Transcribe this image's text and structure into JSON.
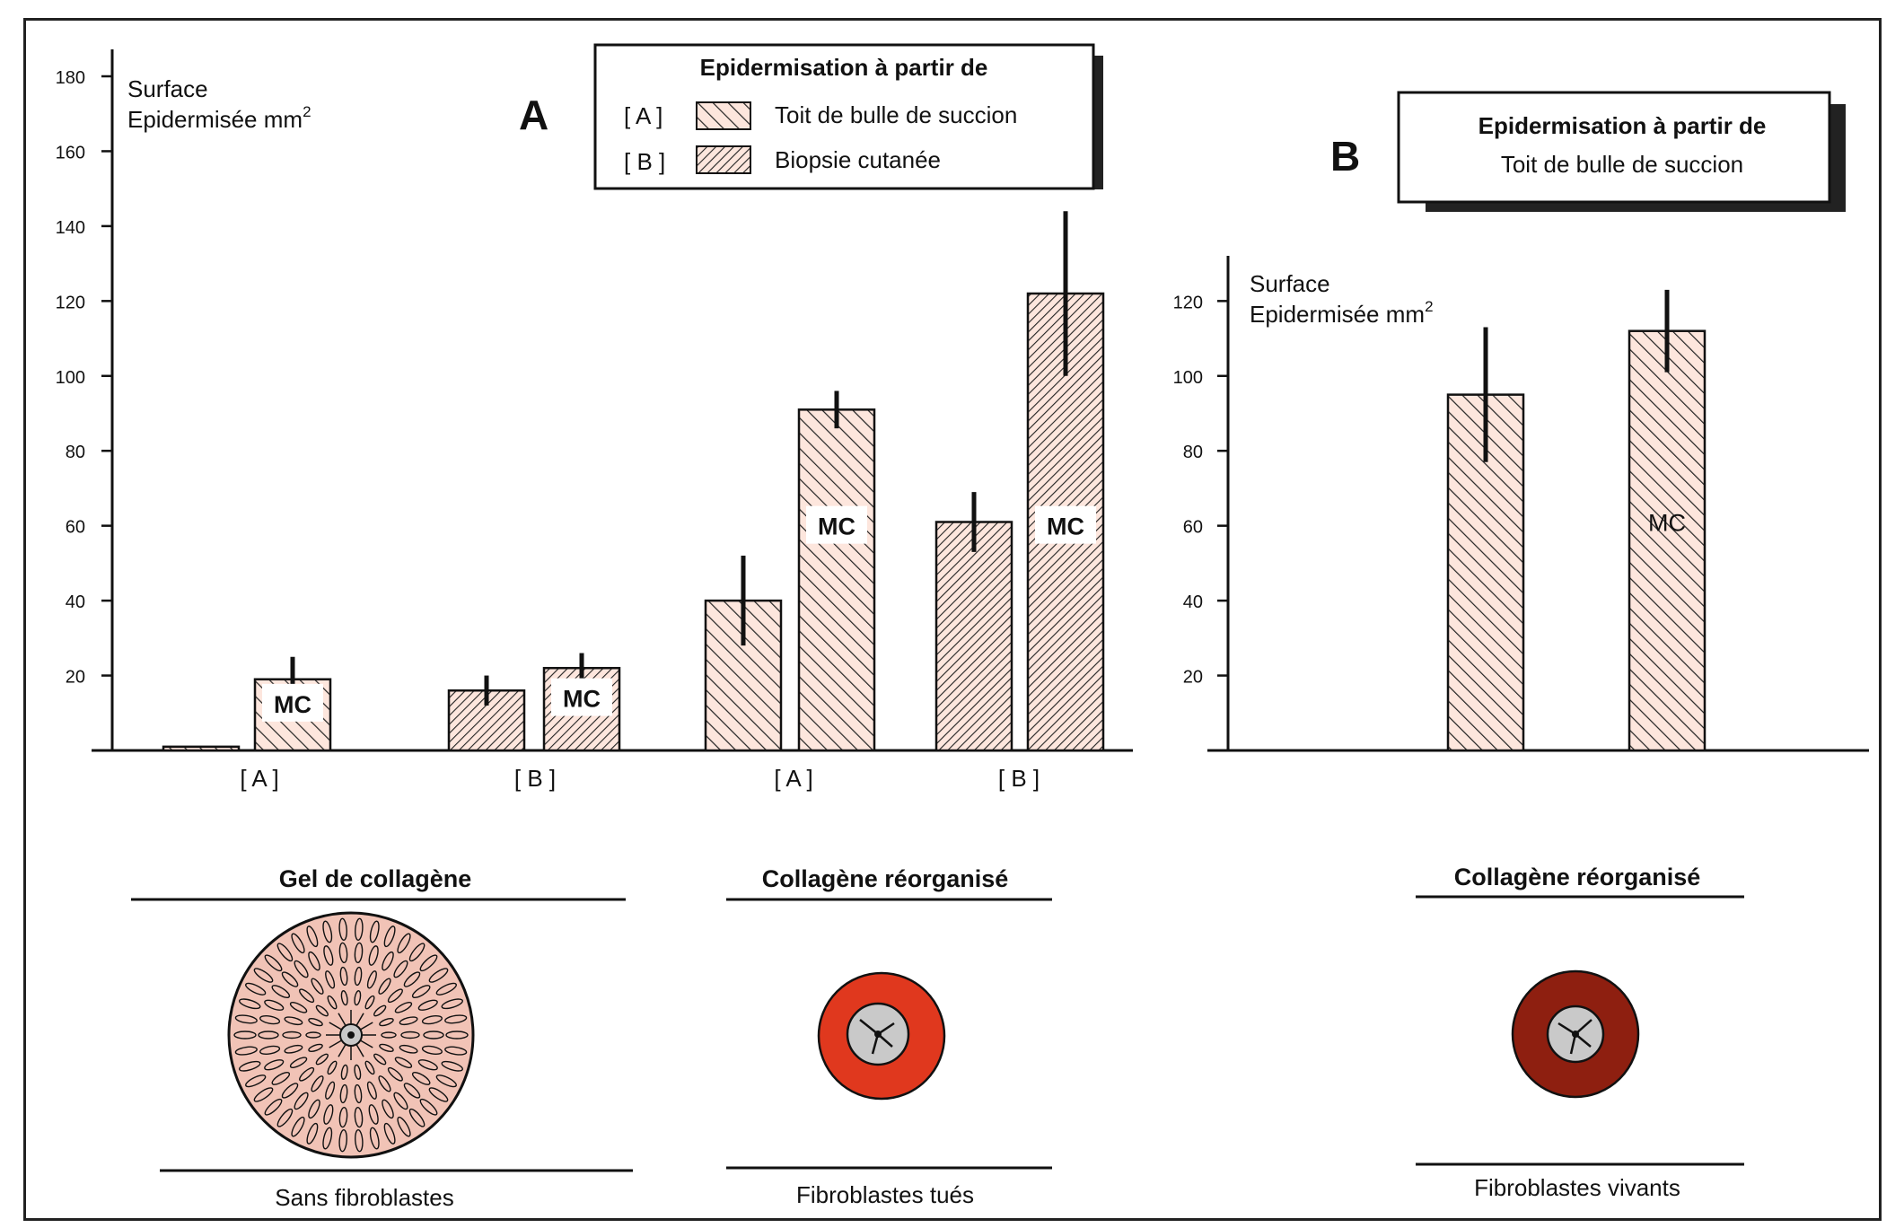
{
  "panel_a": {
    "letter": "A",
    "ylabel_line1": "Surface",
    "ylabel_line2": "Epidermisée mm",
    "ylabel_sup": "2",
    "legend": {
      "title": "Epidermisation à partir de",
      "items": [
        {
          "key": "[ A ]",
          "label": "Toit de bulle de succion",
          "pattern": "backslash"
        },
        {
          "key": "[ B ]",
          "label": "Biopsie cutanée",
          "pattern": "slash"
        }
      ]
    },
    "group_labels": [
      "[ A ]",
      "[ B ]",
      "[ A ]",
      "[ B ]"
    ],
    "bottom": [
      {
        "title": "Gel de collagène",
        "caption": "Sans fibroblastes"
      },
      {
        "title": "Collagène  réorganisé",
        "caption": "Fibroblastes tués"
      }
    ]
  },
  "panel_b": {
    "letter": "B",
    "ylabel_line1": "Surface",
    "ylabel_line2": "Epidermisée mm",
    "ylabel_sup": "2",
    "legend": {
      "title": "Epidermisation  à  partir  de",
      "subtitle": "Toit de bulle de succion"
    },
    "bottom": {
      "title": "Collagène  réorganisé",
      "caption": "Fibroblastes vivants"
    }
  },
  "chart_data": [
    {
      "type": "bar",
      "title": "A",
      "ylabel": "Surface Epidermisée mm2",
      "ylim": [
        0,
        180
      ],
      "yticks": [
        20,
        40,
        60,
        80,
        100,
        120,
        140,
        160,
        180
      ],
      "groups": [
        "Gel de collagène",
        "Collagène réorganisé"
      ],
      "categories": [
        "[ A ]",
        "[ B ]",
        "[ A ]",
        "[ B ]"
      ],
      "series": [
        {
          "name": "Toit de bulle de succion",
          "pattern": "backslash"
        },
        {
          "name": "Biopsie cutanée",
          "pattern": "slash"
        }
      ],
      "bars": [
        {
          "category": "[ A ]",
          "series": "Toit de bulle de succion",
          "value": 1,
          "error": null,
          "label": ""
        },
        {
          "category": "[ A ]",
          "series": "Toit de bulle de succion",
          "value": 19,
          "error": 6,
          "label": "MC"
        },
        {
          "category": "[ B ]",
          "series": "Biopsie cutanée",
          "value": 16,
          "error": 4,
          "label": ""
        },
        {
          "category": "[ B ]",
          "series": "Biopsie cutanée",
          "value": 22,
          "error": 4,
          "label": "MC"
        },
        {
          "category": "[ A ]",
          "series": "Toit de bulle de succion",
          "value": 40,
          "error": 12,
          "label": ""
        },
        {
          "category": "[ A ]",
          "series": "Toit de bulle de succion",
          "value": 91,
          "error": 5,
          "label": "MC"
        },
        {
          "category": "[ B ]",
          "series": "Biopsie cutanée",
          "value": 61,
          "error": 8,
          "label": ""
        },
        {
          "category": "[ B ]",
          "series": "Biopsie cutanée",
          "value": 122,
          "error": 22,
          "label": "MC"
        }
      ]
    },
    {
      "type": "bar",
      "title": "B",
      "ylabel": "Surface Epidermisée mm2",
      "ylim": [
        0,
        130
      ],
      "yticks": [
        20,
        40,
        60,
        80,
        100,
        120
      ],
      "series": [
        {
          "name": "Toit de bulle de succion",
          "pattern": "backslash"
        }
      ],
      "bars": [
        {
          "value": 95,
          "error": 18,
          "label": ""
        },
        {
          "value": 112,
          "error": 11,
          "label": "MC"
        }
      ]
    }
  ],
  "colors": {
    "bar_fill": "#fde6dd",
    "hatch": "#222222",
    "gel_fill": "#f1c3b6",
    "killed_fibro_ring": "#e0381e",
    "live_fibro_ring": "#8e1f10",
    "center_gray": "#c9c9c9"
  }
}
